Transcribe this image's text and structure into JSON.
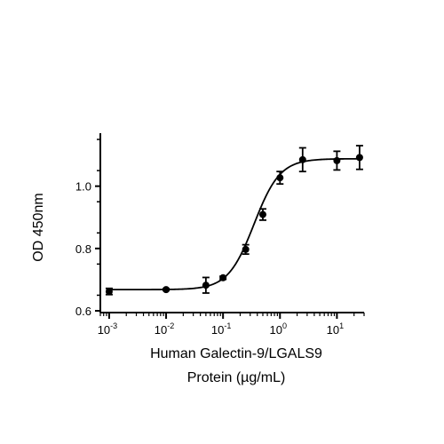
{
  "chart_data": {
    "type": "scatter",
    "title": "",
    "xlabel_line1": "Human Galectin-9/LGALS9",
    "xlabel_line2": "Protein (µg/mL)",
    "ylabel": "OD 450nm",
    "xscale": "log",
    "xlim": [
      0.0007,
      30
    ],
    "ylim": [
      0.6,
      1.17
    ],
    "x_ticks": [
      0.001,
      0.01,
      0.1,
      1,
      10
    ],
    "x_tick_labels": [
      {
        "base": "10",
        "exp": "-3"
      },
      {
        "base": "10",
        "exp": "-2"
      },
      {
        "base": "10",
        "exp": "-1"
      },
      {
        "base": "10",
        "exp": "0"
      },
      {
        "base": "10",
        "exp": "1"
      }
    ],
    "y_ticks": [
      0.6,
      0.8,
      1.0
    ],
    "y_tick_labels": [
      "0.6",
      "0.8",
      "1.0"
    ],
    "grid": false,
    "legend": "none",
    "series": [
      {
        "points": [
          {
            "x": 0.001,
            "y": 0.662,
            "err": 0.01
          },
          {
            "x": 0.01,
            "y": 0.668,
            "err": 0.003
          },
          {
            "x": 0.05,
            "y": 0.682,
            "err": 0.025
          },
          {
            "x": 0.1,
            "y": 0.706,
            "err": 0.005
          },
          {
            "x": 0.25,
            "y": 0.797,
            "err": 0.015
          },
          {
            "x": 0.5,
            "y": 0.909,
            "err": 0.018
          },
          {
            "x": 1.0,
            "y": 1.027,
            "err": 0.02
          },
          {
            "x": 2.5,
            "y": 1.085,
            "err": 0.038
          },
          {
            "x": 10,
            "y": 1.082,
            "err": 0.03
          },
          {
            "x": 25,
            "y": 1.092,
            "err": 0.038
          }
        ],
        "fit": {
          "bottom": 0.668,
          "top": 1.088,
          "ec50": 0.35,
          "hill": 1.9
        }
      }
    ]
  }
}
